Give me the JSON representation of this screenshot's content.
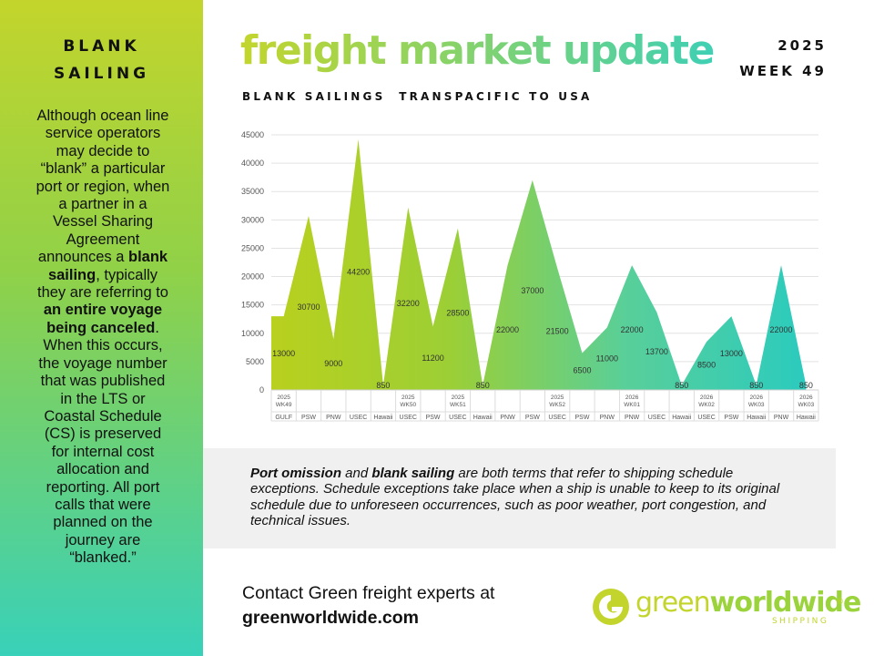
{
  "sidebar": {
    "title_line1": "BLANK",
    "title_line2": "SAILING",
    "body": {
      "t1": "Although ocean line service operators may decide to “blank” a particular port or region, when a partner in a Vessel Sharing Agreement announces a ",
      "b1": "blank sailing",
      "t2": ", typically they are referring to ",
      "b2": "an entire voyage being canceled",
      "t3": ". When this occurs, the voyage number that was published in the LTS or Coastal Schedule (CS) is preserved for internal cost allocation and reporting. All port calls that were planned on the journey are “blanked.”"
    }
  },
  "header": {
    "title": "freight market update",
    "year": "2025",
    "week": "WEEK 49"
  },
  "chart_title": "BLANK SAILINGS  TRANSPACIFIC TO USA",
  "chart_data": {
    "type": "area",
    "ylim": [
      0,
      45000
    ],
    "yticks": [
      0,
      5000,
      10000,
      15000,
      20000,
      25000,
      30000,
      35000,
      40000,
      45000
    ],
    "grid": true,
    "categories": [
      "GULF",
      "PSW",
      "PNW",
      "USEC",
      "Hawaii",
      "USEC",
      "PSW",
      "USEC",
      "Hawaii",
      "PNW",
      "PSW",
      "USEC",
      "PSW",
      "PNW",
      "PNW",
      "USEC",
      "Hawaii",
      "USEC",
      "PSW",
      "Hawaii",
      "PNW",
      "Hawaii"
    ],
    "week_labels": [
      {
        "index": 0,
        "line1": "2025",
        "line2": "WK49"
      },
      {
        "index": 5,
        "line1": "2025",
        "line2": "WK50"
      },
      {
        "index": 7,
        "line1": "2025",
        "line2": "WK51"
      },
      {
        "index": 11,
        "line1": "2025",
        "line2": "WK52"
      },
      {
        "index": 14,
        "line1": "2026",
        "line2": "WK01"
      },
      {
        "index": 17,
        "line1": "2026",
        "line2": "WK02"
      },
      {
        "index": 19,
        "line1": "2026",
        "line2": "WK03"
      },
      {
        "index": 21,
        "line1": "2026",
        "line2": "WK03"
      }
    ],
    "values": [
      13000,
      30700,
      9000,
      44200,
      850,
      32200,
      11200,
      28500,
      850,
      22000,
      37000,
      21500,
      6500,
      11000,
      22000,
      13700,
      850,
      8500,
      13000,
      850,
      22000,
      850
    ],
    "gradient_colors": [
      "#b9d01e",
      "#9ccf35",
      "#58cf9a",
      "#2bcbbe"
    ]
  },
  "info": {
    "b1": "Port omission",
    "t1": " and ",
    "b2": "blank sailing",
    "t2": " are both terms that refer to shipping schedule exceptions. Schedule exceptions take place when a ship is unable to keep to its original schedule due to unforeseen occurrences, such as poor weather, port congestion, and technical issues."
  },
  "contact": {
    "line": "Contact Green freight experts at",
    "url": "greenworldwide.com"
  },
  "logo": {
    "light": "green",
    "bold": "worldwide",
    "sub": "SHIPPING",
    "reg": "®",
    "icon": "green-g-logo-icon"
  },
  "colors": {
    "accent_green": "#c3d52c",
    "accent_teal": "#3fd0b4",
    "info_bg": "#f0f0f0"
  }
}
